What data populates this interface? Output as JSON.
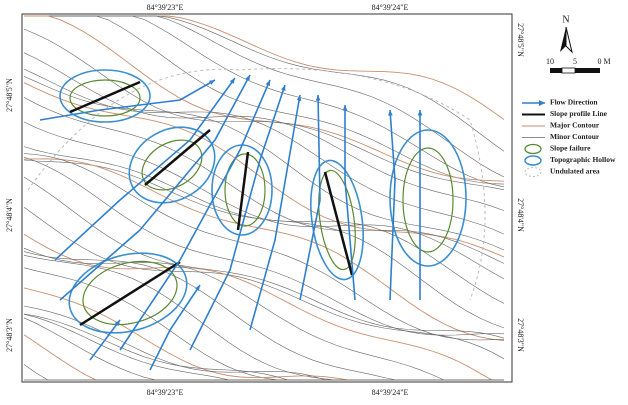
{
  "map": {
    "coords": {
      "top": [
        "84°39'23\"E",
        "84°39'24\"E"
      ],
      "bottom": [
        "84°39'23\"E",
        "84°39'24\"E"
      ],
      "left": [
        "27°48'5\"N",
        "27°48'4\"N",
        "27°48'3\"N"
      ],
      "right": [
        "27°48'5\"N",
        "27°48'4\"N",
        "27°48'3\"N"
      ]
    },
    "north": "N",
    "scale": [
      "10",
      "5",
      "0 M"
    ],
    "legend": [
      "Flow Direction",
      "Slope profile Line",
      "Major Contour",
      "Minor Contour",
      "Slope failure",
      "Topographic Hollow",
      "Undulated area"
    ]
  }
}
